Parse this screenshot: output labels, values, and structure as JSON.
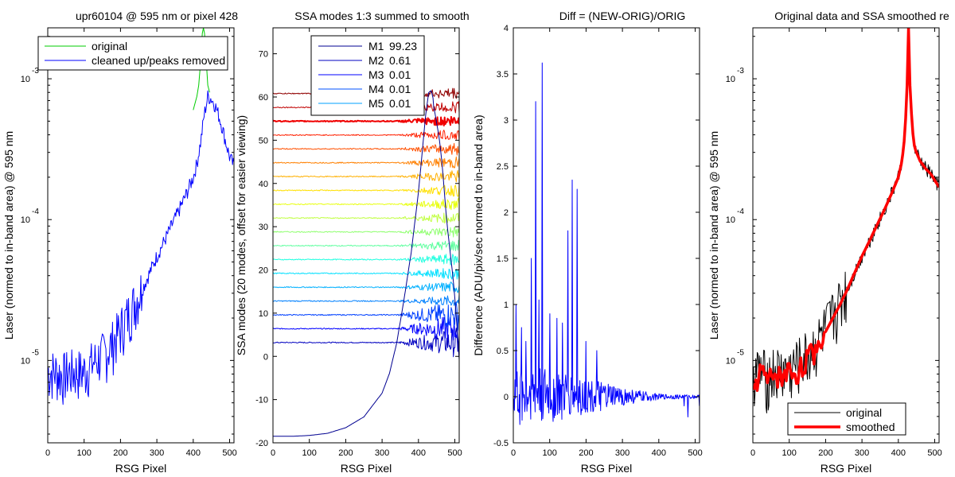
{
  "chart_data": [
    {
      "type": "line",
      "title": "upr60104 @ 595 nm or pixel 428",
      "xlabel": "RSG Pixel",
      "ylabel": "Laser (normed to in-band area) @ 595 nm",
      "xlim": [
        0,
        512
      ],
      "ylim": [
        2.6e-06,
        0.0023
      ],
      "yscale": "log",
      "xticks": [
        "0",
        "100",
        "200",
        "300",
        "400",
        "500"
      ],
      "yticks": [
        {
          "base": "10",
          "exp": "-5",
          "value": 1e-05
        },
        {
          "base": "10",
          "exp": "-4",
          "value": 0.0001
        },
        {
          "base": "10",
          "exp": "-3",
          "value": 0.001
        }
      ],
      "legend": {
        "placement": "top",
        "entries": [
          "original",
          "cleaned up/peaks removed"
        ]
      },
      "series": [
        {
          "name": "original",
          "color": "#00cc00",
          "x": [
            400,
            410,
            415,
            420,
            425,
            428,
            431,
            436,
            440,
            445
          ],
          "y": [
            0.0006,
            0.00075,
            0.0009,
            0.0013,
            0.0021,
            0.0023,
            0.0021,
            0.0013,
            0.0009,
            0.0008
          ]
        },
        {
          "name": "cleaned up/peaks removed",
          "color": "#0000ff",
          "x": [
            0,
            20,
            40,
            60,
            80,
            100,
            120,
            140,
            160,
            180,
            200,
            220,
            240,
            260,
            280,
            300,
            320,
            340,
            360,
            380,
            400,
            410,
            420,
            430,
            440,
            450,
            460,
            470,
            480,
            490,
            500,
            512
          ],
          "y": [
            8e-06,
            8e-06,
            7.5e-06,
            8e-06,
            8e-06,
            8e-06,
            9e-06,
            1e-05,
            1.1e-05,
            1.3e-05,
            1.6e-05,
            2e-05,
            2.5e-05,
            3.2e-05,
            4.2e-05,
            5.5e-05,
            7e-05,
            9e-05,
            0.000115,
            0.00015,
            0.0002,
            0.00025,
            0.00035,
            0.00055,
            0.00075,
            0.00072,
            0.00065,
            0.00055,
            0.00045,
            0.00035,
            0.00028,
            0.00024
          ]
        }
      ]
    },
    {
      "type": "line",
      "title": "SSA modes 1:3 summed to smooth",
      "xlabel": "RSG Pixel",
      "ylabel": "SSA modes (20 modes, offset for easier viewing)",
      "xlim": [
        0,
        512
      ],
      "ylim": [
        -20,
        76
      ],
      "xticks": [
        "0",
        "100",
        "200",
        "300",
        "400",
        "500"
      ],
      "yticks": [
        "-20",
        "-10",
        "0",
        "10",
        "20",
        "30",
        "40",
        "50",
        "60",
        "70"
      ],
      "legend": {
        "placement": "top",
        "entries": [
          {
            "name": "M1",
            "value": "99.23",
            "color": "#000090"
          },
          {
            "name": "M2",
            "value": "0.61",
            "color": "#0000c0"
          },
          {
            "name": "M3",
            "value": "0.01",
            "color": "#0000ff"
          },
          {
            "name": "M4",
            "value": "0.01",
            "color": "#0050ff"
          },
          {
            "name": "M5",
            "value": "0.01",
            "color": "#00a0ff"
          }
        ]
      },
      "mode1": {
        "x": [
          0,
          50,
          100,
          150,
          200,
          250,
          300,
          320,
          340,
          360,
          380,
          400,
          410,
          420,
          428,
          435,
          445,
          455,
          465,
          475,
          485,
          495,
          505,
          512
        ],
        "y": [
          -18.5,
          -18.5,
          -18.3,
          -17.8,
          -16.5,
          -14,
          -8.5,
          -4,
          3,
          13,
          24,
          38,
          47,
          56,
          61,
          61.5,
          58,
          51,
          43,
          35,
          27,
          17,
          7,
          0
        ]
      },
      "offsets": [
        3.2,
        6.4,
        9.6,
        12.8,
        16,
        19.2,
        22.4,
        25.6,
        28.8,
        32,
        35.2,
        38.4,
        41.6,
        44.8,
        48,
        51.2,
        54.4,
        57.6,
        60.8
      ],
      "mode_colors": [
        "#0000c0",
        "#0000ff",
        "#0040ff",
        "#0080ff",
        "#00b0ff",
        "#00e0ff",
        "#20ffe0",
        "#60ffa0",
        "#90ff70",
        "#c0ff40",
        "#e8ff10",
        "#ffe000",
        "#ffb000",
        "#ff8000",
        "#ff5000",
        "#ff2000",
        "#f00000",
        "#c00000",
        "#900000"
      ]
    },
    {
      "type": "line",
      "title": "Diff = (NEW-ORIG)/ORIG",
      "xlabel": "RSG Pixel",
      "ylabel": "Difference (ADU/pix/sec normed to in-band area)",
      "xlim": [
        0,
        512
      ],
      "ylim": [
        -0.5,
        4
      ],
      "xticks": [
        "0",
        "100",
        "200",
        "300",
        "400",
        "500"
      ],
      "yticks": [
        "-0.5",
        "0",
        "0.5",
        "1",
        "1.5",
        "2",
        "2.5",
        "3",
        "3.5",
        "4"
      ],
      "series": [
        {
          "name": "",
          "color": "#0000ff",
          "spikes": [
            [
              8,
              1.0
            ],
            [
              22,
              0.75
            ],
            [
              35,
              0.6
            ],
            [
              50,
              1.5
            ],
            [
              62,
              3.2
            ],
            [
              70,
              1.05
            ],
            [
              80,
              3.62
            ],
            [
              100,
              0.9
            ],
            [
              120,
              0.85
            ],
            [
              135,
              0.8
            ],
            [
              150,
              1.8
            ],
            [
              162,
              2.35
            ],
            [
              175,
              2.25
            ],
            [
              200,
              0.6
            ],
            [
              230,
              0.5
            ]
          ],
          "noise_envelope": {
            "x": [
              0,
              100,
              200,
              300,
              400,
              512
            ],
            "amp": [
              0.32,
              0.3,
              0.2,
              0.1,
              0.03,
              0.02
            ]
          },
          "dips": [
            [
              470,
              -0.1
            ],
            [
              480,
              -0.22
            ],
            [
              512,
              -0.1
            ]
          ]
        }
      ]
    },
    {
      "type": "line",
      "title": "Original data and SSA smoothed re",
      "xlabel": "RSG Pixel",
      "ylabel": "Laser (normed to in-band area) @ 595 nm",
      "xlim": [
        0,
        512
      ],
      "ylim": [
        2.6e-06,
        0.0023
      ],
      "yscale": "log",
      "xticks": [
        "0",
        "100",
        "200",
        "300",
        "400",
        "500"
      ],
      "yticks": [
        {
          "base": "10",
          "exp": "-5",
          "value": 1e-05
        },
        {
          "base": "10",
          "exp": "-4",
          "value": 0.0001
        },
        {
          "base": "10",
          "exp": "-3",
          "value": 0.001
        }
      ],
      "legend": {
        "placement": "bottom",
        "entries": [
          "original",
          "smoothed"
        ]
      },
      "series": [
        {
          "name": "original",
          "color": "#000000",
          "x": [
            0,
            20,
            40,
            60,
            80,
            100,
            120,
            140,
            160,
            180,
            200,
            220,
            240,
            260,
            280,
            300,
            320,
            340,
            360,
            380,
            400,
            410,
            418,
            424,
            428,
            432,
            438,
            445,
            460,
            475,
            490,
            500,
            512
          ],
          "y": [
            8e-06,
            8e-06,
            7.5e-06,
            8e-06,
            8e-06,
            8e-06,
            9e-06,
            1e-05,
            1.1e-05,
            1.3e-05,
            1.6e-05,
            2e-05,
            2.5e-05,
            3.2e-05,
            4.2e-05,
            5.5e-05,
            7e-05,
            9e-05,
            0.000115,
            0.00015,
            0.0002,
            0.00026,
            0.0004,
            0.0009,
            0.0023,
            0.0009,
            0.00045,
            0.00032,
            0.00026,
            0.00023,
            0.00021,
            0.00019,
            0.00017
          ]
        },
        {
          "name": "smoothed",
          "color": "#ff0000",
          "x": [
            0,
            20,
            40,
            60,
            80,
            100,
            120,
            140,
            160,
            180,
            200,
            220,
            240,
            260,
            280,
            300,
            320,
            340,
            360,
            380,
            400,
            410,
            418,
            424,
            428,
            432,
            438,
            445,
            460,
            475,
            490,
            500,
            512
          ],
          "y": [
            6e-06,
            8.5e-06,
            7e-06,
            8e-06,
            7.5e-06,
            8.5e-06,
            8e-06,
            9.5e-06,
            1.1e-05,
            1.3e-05,
            1.6e-05,
            2e-05,
            2.5e-05,
            3.2e-05,
            4.2e-05,
            5.5e-05,
            7e-05,
            9e-05,
            0.000115,
            0.00015,
            0.0002,
            0.00026,
            0.0004,
            0.0009,
            0.0023,
            0.0009,
            0.00045,
            0.00032,
            0.00026,
            0.00023,
            0.00021,
            0.00019,
            0.00017
          ]
        }
      ]
    }
  ]
}
